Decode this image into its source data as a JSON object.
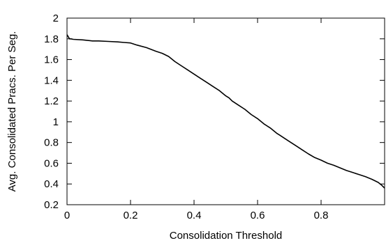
{
  "chart_data": {
    "type": "line",
    "title": "",
    "xlabel": "Consolidation Threshold",
    "ylabel": "Avg. Consolidated Pracs. Per Seg.",
    "xlim": [
      0,
      1.0
    ],
    "ylim": [
      0.2,
      2.0
    ],
    "x_ticks": [
      0,
      0.2,
      0.4,
      0.6,
      0.8
    ],
    "x_tick_labels": [
      "0",
      "0.2",
      "0.4",
      "0.6",
      "0.8"
    ],
    "y_ticks": [
      0.2,
      0.4,
      0.6,
      0.8,
      1.0,
      1.2,
      1.4,
      1.6,
      1.8,
      2.0
    ],
    "y_tick_labels": [
      "0.2",
      "0.4",
      "0.6",
      "0.8",
      "1",
      "1.2",
      "1.4",
      "1.6",
      "1.8",
      "2"
    ],
    "grid": false,
    "legend": "none",
    "line_color": "#000000",
    "series": [
      {
        "x": [
          0.0,
          0.004,
          0.008,
          0.012,
          0.02,
          0.05,
          0.08,
          0.1,
          0.13,
          0.16,
          0.18,
          0.2,
          0.22,
          0.25,
          0.28,
          0.3,
          0.32,
          0.34,
          0.36,
          0.38,
          0.4,
          0.42,
          0.44,
          0.46,
          0.48,
          0.5,
          0.51,
          0.52,
          0.54,
          0.56,
          0.58,
          0.6,
          0.62,
          0.64,
          0.66,
          0.67,
          0.68,
          0.7,
          0.72,
          0.74,
          0.76,
          0.78,
          0.8,
          0.82,
          0.84,
          0.86,
          0.88,
          0.9,
          0.92,
          0.94,
          0.96,
          0.98,
          0.99,
          1.0
        ],
        "y": [
          1.84,
          1.82,
          1.8,
          1.8,
          1.795,
          1.79,
          1.78,
          1.78,
          1.775,
          1.77,
          1.765,
          1.76,
          1.74,
          1.715,
          1.68,
          1.66,
          1.63,
          1.58,
          1.54,
          1.5,
          1.46,
          1.42,
          1.38,
          1.34,
          1.3,
          1.25,
          1.23,
          1.2,
          1.16,
          1.12,
          1.07,
          1.03,
          0.98,
          0.94,
          0.89,
          0.87,
          0.85,
          0.81,
          0.77,
          0.73,
          0.69,
          0.655,
          0.63,
          0.6,
          0.58,
          0.555,
          0.53,
          0.51,
          0.49,
          0.47,
          0.445,
          0.415,
          0.39,
          0.36
        ]
      }
    ]
  }
}
